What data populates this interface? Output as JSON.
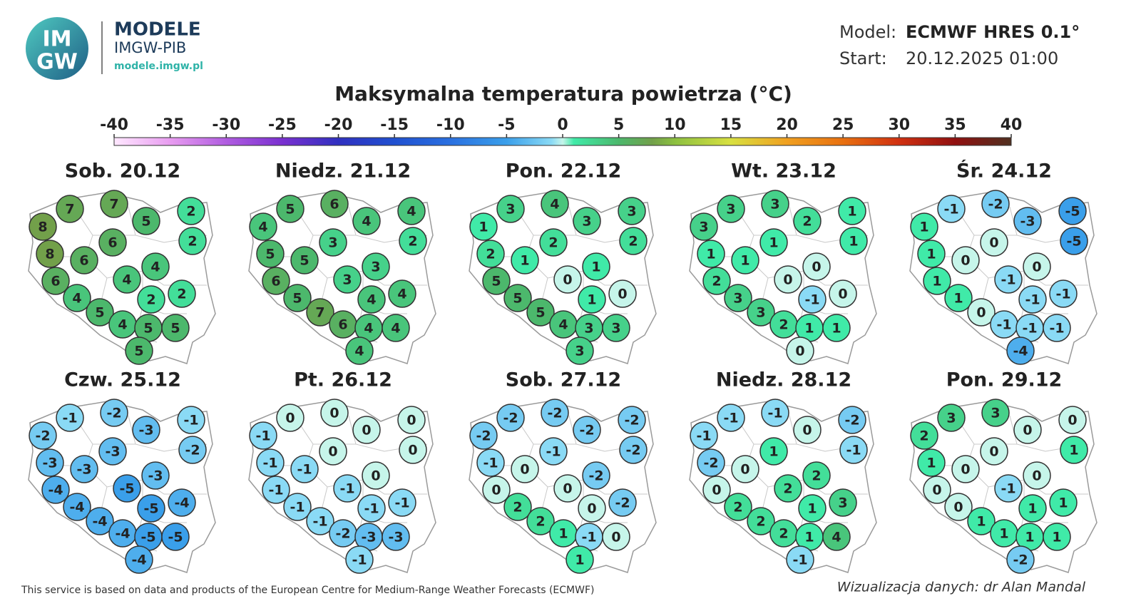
{
  "header": {
    "logo": [
      "IM",
      "GW"
    ],
    "brand": "MODELE",
    "org": "IMGW-PIB",
    "url": "modele.imgw.pl",
    "model_label": "Model:",
    "model": "ECMWF HRES 0.1°",
    "start_label": "Start:",
    "start": "20.12.2025 01:00"
  },
  "legend": {
    "title": "Maksymalna temperatura powietrza (°C)",
    "ticks": [
      -40,
      -35,
      -30,
      -25,
      -20,
      -15,
      -10,
      -5,
      0,
      5,
      10,
      15,
      20,
      25,
      30,
      35,
      40
    ]
  },
  "maps": [
    {
      "title": "Sob. 20.12",
      "values": [
        8,
        7,
        7,
        5,
        2,
        2,
        8,
        6,
        6,
        4,
        4,
        6,
        4,
        2,
        2,
        5,
        4,
        5,
        5,
        5
      ]
    },
    {
      "title": "Niedz. 21.12",
      "values": [
        4,
        5,
        6,
        4,
        4,
        2,
        5,
        3,
        5,
        3,
        3,
        6,
        5,
        4,
        4,
        7,
        6,
        4,
        4,
        4
      ]
    },
    {
      "title": "Pon. 22.12",
      "values": [
        1,
        3,
        4,
        3,
        3,
        2,
        2,
        2,
        1,
        1,
        0,
        5,
        5,
        1,
        0,
        5,
        4,
        3,
        3,
        3
      ]
    },
    {
      "title": "Wt. 23.12",
      "values": [
        3,
        3,
        3,
        2,
        1,
        1,
        1,
        1,
        1,
        0,
        0,
        2,
        3,
        -1,
        0,
        3,
        2,
        1,
        1,
        0
      ]
    },
    {
      "title": "Śr. 24.12",
      "values": [
        1,
        -1,
        -2,
        -3,
        -5,
        -5,
        1,
        0,
        0,
        0,
        -1,
        1,
        1,
        -1,
        -1,
        0,
        -1,
        -1,
        -1,
        -4
      ]
    },
    {
      "title": "Czw. 25.12",
      "values": [
        -2,
        -1,
        -2,
        -3,
        -1,
        -2,
        -3,
        -3,
        -3,
        -3,
        -5,
        -4,
        -4,
        -5,
        -4,
        -4,
        -4,
        -5,
        -5,
        -4
      ]
    },
    {
      "title": "Pt. 26.12",
      "values": [
        -1,
        0,
        0,
        0,
        0,
        0,
        -1,
        0,
        -1,
        0,
        -1,
        -1,
        -1,
        -1,
        -1,
        -1,
        -2,
        -3,
        -3,
        -1
      ]
    },
    {
      "title": "Sob. 27.12",
      "values": [
        -2,
        -2,
        -2,
        -2,
        -2,
        -2,
        -1,
        -1,
        0,
        -2,
        0,
        0,
        2,
        0,
        -2,
        2,
        1,
        -1,
        0,
        1
      ]
    },
    {
      "title": "Niedz. 28.12",
      "values": [
        -1,
        -1,
        -1,
        0,
        -2,
        -1,
        -2,
        1,
        0,
        2,
        2,
        0,
        2,
        1,
        3,
        2,
        2,
        1,
        4,
        -1
      ]
    },
    {
      "title": "Pon. 29.12",
      "values": [
        2,
        3,
        3,
        0,
        0,
        1,
        1,
        0,
        0,
        0,
        -1,
        0,
        0,
        1,
        1,
        1,
        1,
        1,
        1,
        -2
      ]
    }
  ],
  "footer": {
    "source": "This service is based on data and products of the European Centre for Medium-Range Weather Forecasts (ECMWF)",
    "credit": "Wizualizacja danych: dr Alan Mandal"
  }
}
